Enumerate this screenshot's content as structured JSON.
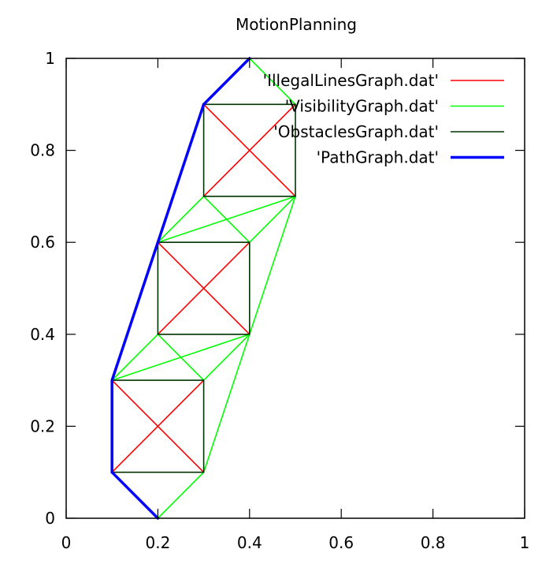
{
  "chart_data": {
    "type": "line",
    "title": "MotionPlanning",
    "xlabel": "",
    "ylabel": "",
    "xlim": [
      0,
      1
    ],
    "ylim": [
      0,
      1
    ],
    "xticks": [
      "0",
      "0.2",
      "0.4",
      "0.6",
      "0.8",
      "1"
    ],
    "yticks": [
      "0",
      "0.2",
      "0.4",
      "0.6",
      "0.8",
      "1"
    ],
    "xtick_values": [
      0,
      0.2,
      0.4,
      0.6,
      0.8,
      1
    ],
    "ytick_values": [
      0,
      0.2,
      0.4,
      0.6,
      0.8,
      1
    ],
    "grid": false,
    "legend_position": "top-right",
    "series": [
      {
        "name": "'IllegalLinesGraph.dat'",
        "color": "#ff0000",
        "segments": [
          [
            [
              0.1,
              0.1
            ],
            [
              0.3,
              0.3
            ]
          ],
          [
            [
              0.1,
              0.3
            ],
            [
              0.3,
              0.1
            ]
          ],
          [
            [
              0.2,
              0.4
            ],
            [
              0.4,
              0.6
            ]
          ],
          [
            [
              0.2,
              0.6
            ],
            [
              0.4,
              0.4
            ]
          ],
          [
            [
              0.3,
              0.7
            ],
            [
              0.5,
              0.9
            ]
          ],
          [
            [
              0.3,
              0.9
            ],
            [
              0.5,
              0.7
            ]
          ]
        ]
      },
      {
        "name": "'VisibilityGraph.dat'",
        "color": "#00ff00",
        "segments": [
          [
            [
              0.2,
              0
            ],
            [
              0.3,
              0.1
            ]
          ],
          [
            [
              0.3,
              0.1
            ],
            [
              0.4,
              0.4
            ]
          ],
          [
            [
              0.1,
              0.3
            ],
            [
              0.2,
              0.4
            ]
          ],
          [
            [
              0.1,
              0.3
            ],
            [
              0.4,
              0.4
            ]
          ],
          [
            [
              0.2,
              0.4
            ],
            [
              0.3,
              0.3
            ]
          ],
          [
            [
              0.3,
              0.3
            ],
            [
              0.4,
              0.4
            ]
          ],
          [
            [
              0.4,
              0.4
            ],
            [
              0.5,
              0.7
            ]
          ],
          [
            [
              0.2,
              0.6
            ],
            [
              0.3,
              0.7
            ]
          ],
          [
            [
              0.2,
              0.6
            ],
            [
              0.5,
              0.7
            ]
          ],
          [
            [
              0.3,
              0.7
            ],
            [
              0.4,
              0.6
            ]
          ],
          [
            [
              0.4,
              0.6
            ],
            [
              0.5,
              0.7
            ]
          ],
          [
            [
              0.4,
              1.0
            ],
            [
              0.5,
              0.9
            ]
          ]
        ]
      },
      {
        "name": "'ObstaclesGraph.dat'",
        "color": "#003300",
        "segments": [
          [
            [
              0.1,
              0.1
            ],
            [
              0.3,
              0.1
            ]
          ],
          [
            [
              0.3,
              0.1
            ],
            [
              0.3,
              0.3
            ]
          ],
          [
            [
              0.3,
              0.3
            ],
            [
              0.1,
              0.3
            ]
          ],
          [
            [
              0.1,
              0.3
            ],
            [
              0.1,
              0.1
            ]
          ],
          [
            [
              0.2,
              0.4
            ],
            [
              0.4,
              0.4
            ]
          ],
          [
            [
              0.4,
              0.4
            ],
            [
              0.4,
              0.6
            ]
          ],
          [
            [
              0.4,
              0.6
            ],
            [
              0.2,
              0.6
            ]
          ],
          [
            [
              0.2,
              0.6
            ],
            [
              0.2,
              0.4
            ]
          ],
          [
            [
              0.3,
              0.7
            ],
            [
              0.5,
              0.7
            ]
          ],
          [
            [
              0.5,
              0.7
            ],
            [
              0.5,
              0.9
            ]
          ],
          [
            [
              0.5,
              0.9
            ],
            [
              0.3,
              0.9
            ]
          ],
          [
            [
              0.3,
              0.9
            ],
            [
              0.3,
              0.7
            ]
          ]
        ]
      },
      {
        "name": "'PathGraph.dat'",
        "color": "#0000ff",
        "thick": true,
        "segments": [
          [
            [
              0.2,
              0
            ],
            [
              0.1,
              0.1
            ]
          ],
          [
            [
              0.1,
              0.1
            ],
            [
              0.1,
              0.3
            ]
          ],
          [
            [
              0.1,
              0.3
            ],
            [
              0.2,
              0.6
            ]
          ],
          [
            [
              0.2,
              0.6
            ],
            [
              0.3,
              0.9
            ]
          ],
          [
            [
              0.3,
              0.9
            ],
            [
              0.4,
              1.0
            ]
          ]
        ]
      }
    ]
  }
}
